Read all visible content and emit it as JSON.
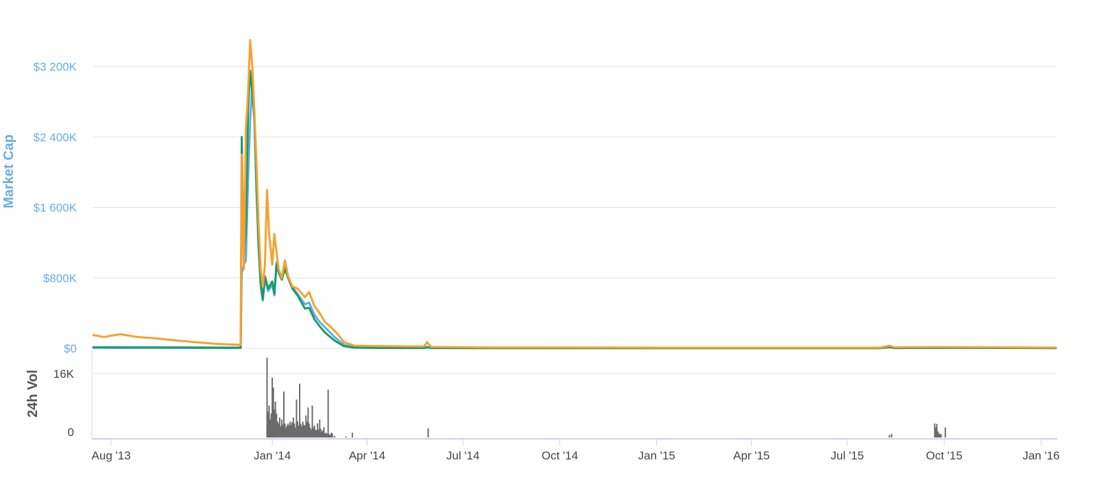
{
  "colors": {
    "market_cap": "#5ab0e2",
    "price_btc": "#1a9a6a",
    "price_usd": "#f7a030",
    "volume": "#6b6b6b",
    "grid": "#e2e2e2",
    "axis_title_main": "#6aaee0",
    "axis_title_volume": "#555555"
  },
  "chart_data": {
    "type": "line",
    "title": "",
    "grid": true,
    "legend": "none",
    "x_range": [
      "2013-07-15",
      "2016-01-15"
    ],
    "x_ticks": [
      {
        "date": "2013-08-01",
        "label": "Aug '13"
      },
      {
        "date": "2014-01-01",
        "label": "Jan '14"
      },
      {
        "date": "2014-04-01",
        "label": "Apr '14"
      },
      {
        "date": "2014-07-01",
        "label": "Jul '14"
      },
      {
        "date": "2014-10-01",
        "label": "Oct '14"
      },
      {
        "date": "2015-01-01",
        "label": "Jan '15"
      },
      {
        "date": "2015-04-01",
        "label": "Apr '15"
      },
      {
        "date": "2015-07-01",
        "label": "Jul '15"
      },
      {
        "date": "2015-10-01",
        "label": "Oct '15"
      },
      {
        "date": "2016-01-01",
        "label": "Jan '16"
      }
    ],
    "main_panel": {
      "ylabel": "Market Cap",
      "ylim": [
        0,
        3200000
      ],
      "y_ticks": [
        {
          "value": 0,
          "label": "$0"
        },
        {
          "value": 800000,
          "label": "$800K"
        },
        {
          "value": 1600000,
          "label": "$1 600K"
        },
        {
          "value": 2400000,
          "label": "$2 400K"
        },
        {
          "value": 3200000,
          "label": "$3 200K"
        }
      ],
      "series": [
        {
          "key": "market_cap",
          "points": [
            [
              "2013-07-15",
              15000
            ],
            [
              "2013-09-01",
              14000
            ],
            [
              "2013-10-15",
              12000
            ],
            [
              "2013-11-20",
              10000
            ],
            [
              "2013-12-02",
              10000
            ],
            [
              "2013-12-03",
              850000
            ],
            [
              "2013-12-05",
              950000
            ],
            [
              "2013-12-07",
              1000000
            ],
            [
              "2013-12-09",
              1900000
            ],
            [
              "2013-12-11",
              2600000
            ],
            [
              "2013-12-13",
              3000000
            ],
            [
              "2013-12-15",
              2700000
            ],
            [
              "2013-12-17",
              1800000
            ],
            [
              "2013-12-19",
              1150000
            ],
            [
              "2013-12-21",
              700000
            ],
            [
              "2013-12-23",
              540000
            ],
            [
              "2013-12-25",
              790000
            ],
            [
              "2013-12-28",
              650000
            ],
            [
              "2014-01-01",
              720000
            ],
            [
              "2014-01-03",
              600000
            ],
            [
              "2014-01-05",
              980000
            ],
            [
              "2014-01-07",
              880000
            ],
            [
              "2014-01-10",
              780000
            ],
            [
              "2014-01-13",
              940000
            ],
            [
              "2014-01-16",
              820000
            ],
            [
              "2014-01-20",
              700000
            ],
            [
              "2014-01-25",
              620000
            ],
            [
              "2014-02-01",
              500000
            ],
            [
              "2014-02-05",
              520000
            ],
            [
              "2014-02-10",
              380000
            ],
            [
              "2014-02-15",
              300000
            ],
            [
              "2014-02-20",
              240000
            ],
            [
              "2014-02-25",
              180000
            ],
            [
              "2014-03-01",
              130000
            ],
            [
              "2014-03-05",
              90000
            ],
            [
              "2014-03-10",
              40000
            ],
            [
              "2014-03-20",
              15000
            ],
            [
              "2014-04-15",
              8000
            ],
            [
              "2014-05-25",
              6000
            ],
            [
              "2014-05-28",
              20000
            ],
            [
              "2014-06-01",
              5000
            ],
            [
              "2014-08-01",
              4000
            ],
            [
              "2015-01-01",
              3500
            ],
            [
              "2015-08-01",
              3500
            ],
            [
              "2015-08-10",
              12000
            ],
            [
              "2015-08-15",
              4000
            ],
            [
              "2015-10-01",
              5000
            ],
            [
              "2016-01-15",
              3000
            ]
          ]
        },
        {
          "key": "price_btc",
          "points": [
            [
              "2013-07-15",
              8000
            ],
            [
              "2013-09-01",
              7000
            ],
            [
              "2013-10-15",
              6000
            ],
            [
              "2013-11-20",
              5000
            ],
            [
              "2013-12-02",
              5000
            ],
            [
              "2013-12-03",
              2400000
            ],
            [
              "2013-12-05",
              1000000
            ],
            [
              "2013-12-07",
              1400000
            ],
            [
              "2013-12-09",
              2700000
            ],
            [
              "2013-12-11",
              3150000
            ],
            [
              "2013-12-13",
              2900000
            ],
            [
              "2013-12-15",
              2600000
            ],
            [
              "2013-12-17",
              1800000
            ],
            [
              "2013-12-19",
              1150000
            ],
            [
              "2013-12-21",
              750000
            ],
            [
              "2013-12-23",
              560000
            ],
            [
              "2013-12-25",
              820000
            ],
            [
              "2013-12-28",
              680000
            ],
            [
              "2014-01-01",
              760000
            ],
            [
              "2014-01-03",
              620000
            ],
            [
              "2014-01-05",
              950000
            ],
            [
              "2014-01-07",
              860000
            ],
            [
              "2014-01-10",
              780000
            ],
            [
              "2014-01-13",
              900000
            ],
            [
              "2014-01-16",
              800000
            ],
            [
              "2014-01-20",
              680000
            ],
            [
              "2014-01-25",
              600000
            ],
            [
              "2014-02-01",
              450000
            ],
            [
              "2014-02-05",
              460000
            ],
            [
              "2014-02-10",
              330000
            ],
            [
              "2014-02-15",
              250000
            ],
            [
              "2014-02-20",
              180000
            ],
            [
              "2014-02-25",
              130000
            ],
            [
              "2014-03-01",
              90000
            ],
            [
              "2014-03-05",
              60000
            ],
            [
              "2014-03-10",
              25000
            ],
            [
              "2014-03-20",
              8000
            ],
            [
              "2014-04-15",
              4000
            ],
            [
              "2014-05-25",
              3000
            ],
            [
              "2014-05-28",
              10000
            ],
            [
              "2014-06-01",
              3000
            ],
            [
              "2014-08-01",
              2000
            ],
            [
              "2015-01-01",
              2000
            ],
            [
              "2015-08-01",
              2000
            ],
            [
              "2015-08-10",
              15000
            ],
            [
              "2015-08-15",
              3000
            ],
            [
              "2015-10-01",
              6000
            ],
            [
              "2016-01-15",
              2000
            ]
          ]
        },
        {
          "key": "price_usd",
          "points": [
            [
              "2013-07-15",
              150000
            ],
            [
              "2013-07-25",
              130000
            ],
            [
              "2013-08-10",
              160000
            ],
            [
              "2013-08-25",
              130000
            ],
            [
              "2013-09-15",
              110000
            ],
            [
              "2013-10-01",
              90000
            ],
            [
              "2013-10-20",
              70000
            ],
            [
              "2013-11-10",
              50000
            ],
            [
              "2013-12-01",
              40000
            ],
            [
              "2013-12-02",
              40000
            ],
            [
              "2013-12-03",
              2200000
            ],
            [
              "2013-12-05",
              900000
            ],
            [
              "2013-12-07",
              2500000
            ],
            [
              "2013-12-09",
              2900000
            ],
            [
              "2013-12-11",
              3500000
            ],
            [
              "2013-12-13",
              3200000
            ],
            [
              "2013-12-15",
              2700000
            ],
            [
              "2013-12-17",
              2100000
            ],
            [
              "2013-12-19",
              1400000
            ],
            [
              "2013-12-21",
              900000
            ],
            [
              "2013-12-23",
              700000
            ],
            [
              "2013-12-25",
              950000
            ],
            [
              "2013-12-27",
              1800000
            ],
            [
              "2013-12-29",
              1300000
            ],
            [
              "2014-01-01",
              950000
            ],
            [
              "2014-01-03",
              1300000
            ],
            [
              "2014-01-05",
              1100000
            ],
            [
              "2014-01-07",
              900000
            ],
            [
              "2014-01-10",
              800000
            ],
            [
              "2014-01-13",
              1000000
            ],
            [
              "2014-01-16",
              820000
            ],
            [
              "2014-01-20",
              700000
            ],
            [
              "2014-01-25",
              680000
            ],
            [
              "2014-02-01",
              580000
            ],
            [
              "2014-02-05",
              640000
            ],
            [
              "2014-02-10",
              480000
            ],
            [
              "2014-02-15",
              400000
            ],
            [
              "2014-02-20",
              300000
            ],
            [
              "2014-02-25",
              250000
            ],
            [
              "2014-03-01",
              200000
            ],
            [
              "2014-03-05",
              150000
            ],
            [
              "2014-03-10",
              70000
            ],
            [
              "2014-03-20",
              30000
            ],
            [
              "2014-04-15",
              25000
            ],
            [
              "2014-05-25",
              20000
            ],
            [
              "2014-05-28",
              70000
            ],
            [
              "2014-06-01",
              15000
            ],
            [
              "2014-08-01",
              10000
            ],
            [
              "2015-01-01",
              8000
            ],
            [
              "2015-08-01",
              8000
            ],
            [
              "2015-08-10",
              30000
            ],
            [
              "2015-08-15",
              12000
            ],
            [
              "2015-10-01",
              15000
            ],
            [
              "2016-01-15",
              8000
            ]
          ]
        }
      ]
    },
    "volume_panel": {
      "ylabel": "24h Vol",
      "ylim": [
        0,
        22000
      ],
      "y_ticks": [
        {
          "value": 0,
          "label": "0"
        },
        {
          "value": 16000,
          "label": "16K"
        }
      ],
      "bars": [
        [
          "2013-12-27",
          20000
        ],
        [
          "2013-12-28",
          6500
        ],
        [
          "2013-12-29",
          8000
        ],
        [
          "2013-12-30",
          4500
        ],
        [
          "2013-12-31",
          6000
        ],
        [
          "2014-01-01",
          15000
        ],
        [
          "2014-01-02",
          12500
        ],
        [
          "2014-01-03",
          7000
        ],
        [
          "2014-01-04",
          9000
        ],
        [
          "2014-01-05",
          6000
        ],
        [
          "2014-01-06",
          4000
        ],
        [
          "2014-01-07",
          3500
        ],
        [
          "2014-01-08",
          5000
        ],
        [
          "2014-01-09",
          2800
        ],
        [
          "2014-01-10",
          4500
        ],
        [
          "2014-01-11",
          3200
        ],
        [
          "2014-01-12",
          11500
        ],
        [
          "2014-01-13",
          3500
        ],
        [
          "2014-01-14",
          2500
        ],
        [
          "2014-01-15",
          3000
        ],
        [
          "2014-01-16",
          3500
        ],
        [
          "2014-01-17",
          3000
        ],
        [
          "2014-01-18",
          4000
        ],
        [
          "2014-01-19",
          3200
        ],
        [
          "2014-01-20",
          3800
        ],
        [
          "2014-01-21",
          5000
        ],
        [
          "2014-01-22",
          3500
        ],
        [
          "2014-01-23",
          2500
        ],
        [
          "2014-01-24",
          9500
        ],
        [
          "2014-01-25",
          4000
        ],
        [
          "2014-01-26",
          3000
        ],
        [
          "2014-01-27",
          13500
        ],
        [
          "2014-01-28",
          3500
        ],
        [
          "2014-01-29",
          2800
        ],
        [
          "2014-01-30",
          4000
        ],
        [
          "2014-01-31",
          3200
        ],
        [
          "2014-02-01",
          3000
        ],
        [
          "2014-02-02",
          5500
        ],
        [
          "2014-02-03",
          4000
        ],
        [
          "2014-02-04",
          7500
        ],
        [
          "2014-02-05",
          3500
        ],
        [
          "2014-02-06",
          2500
        ],
        [
          "2014-02-07",
          2000
        ],
        [
          "2014-02-08",
          8000
        ],
        [
          "2014-02-09",
          2500
        ],
        [
          "2014-02-10",
          3000
        ],
        [
          "2014-02-11",
          2000
        ],
        [
          "2014-02-12",
          1800
        ],
        [
          "2014-02-13",
          3500
        ],
        [
          "2014-02-14",
          2000
        ],
        [
          "2014-02-15",
          4500
        ],
        [
          "2014-02-16",
          2200
        ],
        [
          "2014-02-17",
          1500
        ],
        [
          "2014-02-18",
          1800
        ],
        [
          "2014-02-19",
          2600
        ],
        [
          "2014-02-20",
          1000
        ],
        [
          "2014-02-21",
          1200
        ],
        [
          "2014-02-22",
          900
        ],
        [
          "2014-02-23",
          12000
        ],
        [
          "2014-02-24",
          800
        ],
        [
          "2014-02-25",
          600
        ],
        [
          "2014-02-26",
          1200
        ],
        [
          "2014-02-27",
          1000
        ],
        [
          "2014-03-01",
          400
        ],
        [
          "2014-03-12",
          300
        ],
        [
          "2014-03-18",
          1200
        ],
        [
          "2014-05-29",
          2300
        ],
        [
          "2015-08-10",
          600
        ],
        [
          "2015-08-12",
          900
        ],
        [
          "2015-09-22",
          3500
        ],
        [
          "2015-09-23",
          2500
        ],
        [
          "2015-09-24",
          3400
        ],
        [
          "2015-09-25",
          1500
        ],
        [
          "2015-09-26",
          1000
        ],
        [
          "2015-09-27",
          900
        ],
        [
          "2015-09-28",
          800
        ],
        [
          "2015-10-02",
          2500
        ]
      ]
    }
  }
}
